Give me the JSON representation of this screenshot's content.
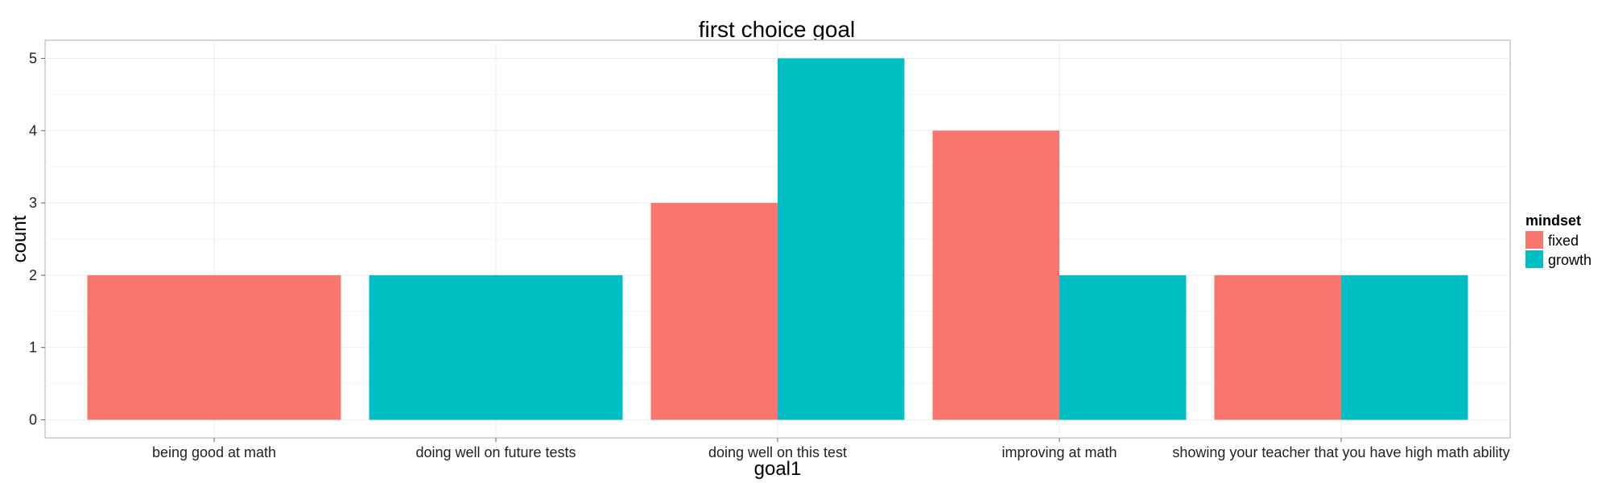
{
  "chart_data": {
    "type": "bar",
    "title": "first choice goal",
    "xlabel": "goal1",
    "ylabel": "count",
    "categories": [
      "being good at math",
      "doing well on future tests",
      "doing well on this test",
      "improving at math",
      "showing your teacher that you have high math ability"
    ],
    "series": [
      {
        "name": "fixed",
        "color": "#F8766D",
        "values": [
          2,
          null,
          3,
          4,
          2
        ]
      },
      {
        "name": "growth",
        "color": "#00BFC4",
        "values": [
          null,
          2,
          5,
          2,
          2
        ]
      }
    ],
    "ylim": [
      0,
      5
    ],
    "yticks": [
      0,
      1,
      2,
      3,
      4,
      5
    ],
    "grid": true,
    "legend": {
      "title": "mindset",
      "position": "right",
      "entries": [
        "fixed",
        "growth"
      ]
    }
  }
}
